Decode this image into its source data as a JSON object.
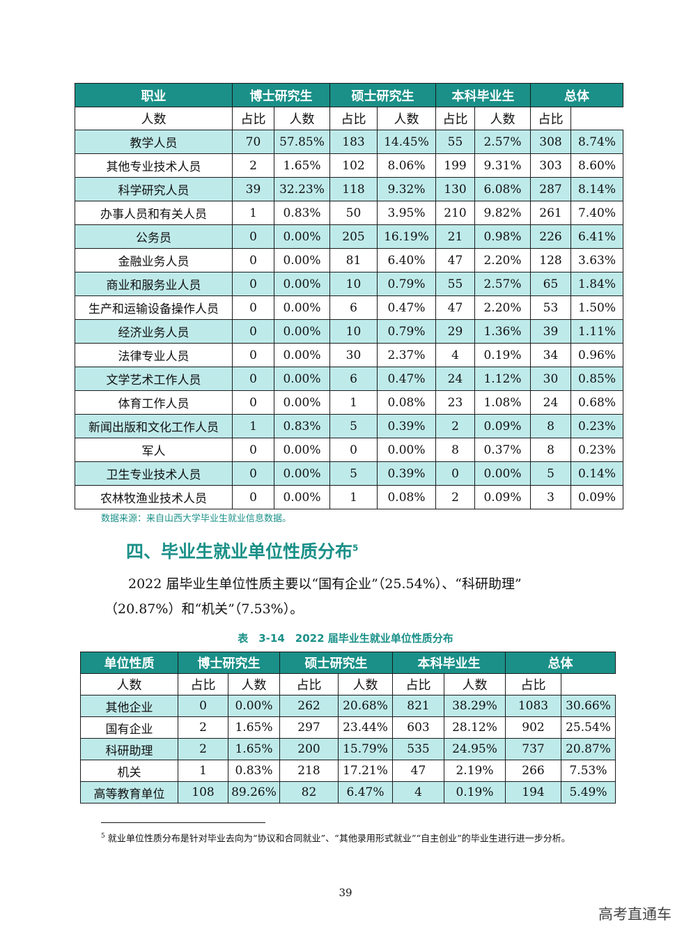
{
  "table1": {
    "header": {
      "label": "职业",
      "groups": [
        "博士研究生",
        "硕士研究生",
        "本科毕业生",
        "总体"
      ],
      "sub": [
        "人数",
        "占比"
      ]
    },
    "rows": [
      [
        "教学人员",
        "70",
        "57.85%",
        "183",
        "14.45%",
        "55",
        "2.57%",
        "308",
        "8.74%"
      ],
      [
        "其他专业技术人员",
        "2",
        "1.65%",
        "102",
        "8.06%",
        "199",
        "9.31%",
        "303",
        "8.60%"
      ],
      [
        "科学研究人员",
        "39",
        "32.23%",
        "118",
        "9.32%",
        "130",
        "6.08%",
        "287",
        "8.14%"
      ],
      [
        "办事人员和有关人员",
        "1",
        "0.83%",
        "50",
        "3.95%",
        "210",
        "9.82%",
        "261",
        "7.40%"
      ],
      [
        "公务员",
        "0",
        "0.00%",
        "205",
        "16.19%",
        "21",
        "0.98%",
        "226",
        "6.41%"
      ],
      [
        "金融业务人员",
        "0",
        "0.00%",
        "81",
        "6.40%",
        "47",
        "2.20%",
        "128",
        "3.63%"
      ],
      [
        "商业和服务业人员",
        "0",
        "0.00%",
        "10",
        "0.79%",
        "55",
        "2.57%",
        "65",
        "1.84%"
      ],
      [
        "生产和运输设备操作人员",
        "0",
        "0.00%",
        "6",
        "0.47%",
        "47",
        "2.20%",
        "53",
        "1.50%"
      ],
      [
        "经济业务人员",
        "0",
        "0.00%",
        "10",
        "0.79%",
        "29",
        "1.36%",
        "39",
        "1.11%"
      ],
      [
        "法律专业人员",
        "0",
        "0.00%",
        "30",
        "2.37%",
        "4",
        "0.19%",
        "34",
        "0.96%"
      ],
      [
        "文学艺术工作人员",
        "0",
        "0.00%",
        "6",
        "0.47%",
        "24",
        "1.12%",
        "30",
        "0.85%"
      ],
      [
        "体育工作人员",
        "0",
        "0.00%",
        "1",
        "0.08%",
        "23",
        "1.08%",
        "24",
        "0.68%"
      ],
      [
        "新闻出版和文化工作人员",
        "1",
        "0.83%",
        "5",
        "0.39%",
        "2",
        "0.09%",
        "8",
        "0.23%"
      ],
      [
        "军人",
        "0",
        "0.00%",
        "0",
        "0.00%",
        "8",
        "0.37%",
        "8",
        "0.23%"
      ],
      [
        "卫生专业技术人员",
        "0",
        "0.00%",
        "5",
        "0.39%",
        "0",
        "0.00%",
        "5",
        "0.14%"
      ],
      [
        "农林牧渔业技术人员",
        "0",
        "0.00%",
        "1",
        "0.08%",
        "2",
        "0.09%",
        "3",
        "0.09%"
      ]
    ]
  },
  "source_note": "数据来源：来自山西大学毕业生就业信息数据。",
  "section": {
    "title": "四、毕业生就业单位性质分布",
    "footnote_ref": "5"
  },
  "paragraph": {
    "line1": "2022 届毕业生单位性质主要以“国有企业”（25.54%）、“科研助理”",
    "line2": "（20.87%）和“机关”（7.53%）。"
  },
  "table2": {
    "caption": "表　3-14　2022 届毕业生就业单位性质分布",
    "header": {
      "label": "单位性质",
      "groups": [
        "博士研究生",
        "硕士研究生",
        "本科毕业生",
        "总体"
      ],
      "sub": [
        "人数",
        "占比"
      ]
    },
    "rows": [
      [
        "其他企业",
        "0",
        "0.00%",
        "262",
        "20.68%",
        "821",
        "38.29%",
        "1083",
        "30.66%"
      ],
      [
        "国有企业",
        "2",
        "1.65%",
        "297",
        "23.44%",
        "603",
        "28.12%",
        "902",
        "25.54%"
      ],
      [
        "科研助理",
        "2",
        "1.65%",
        "200",
        "15.79%",
        "535",
        "24.95%",
        "737",
        "20.87%"
      ],
      [
        "机关",
        "1",
        "0.83%",
        "218",
        "17.21%",
        "47",
        "2.19%",
        "266",
        "7.53%"
      ],
      [
        "高等教育单位",
        "108",
        "89.26%",
        "82",
        "6.47%",
        "4",
        "0.19%",
        "194",
        "5.49%"
      ]
    ]
  },
  "footnote": {
    "marker": "5",
    "text": "就业单位性质分布是针对毕业去向为“协议和合同就业”、“其他录用形式就业”“自主创业”的毕业生进行进一步分析。"
  },
  "page_number": "39",
  "watermark": "高考直通车"
}
